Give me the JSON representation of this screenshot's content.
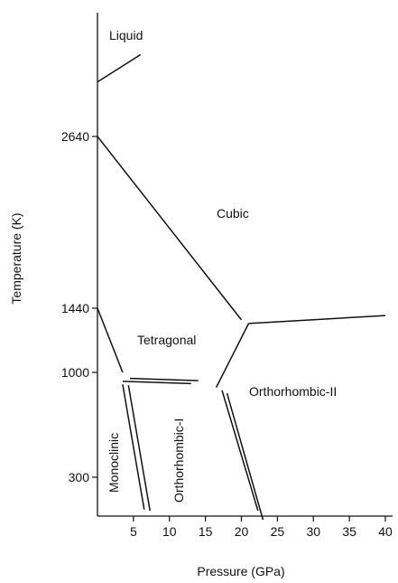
{
  "chart_data": {
    "type": "line",
    "title": "",
    "xlabel": "Pressure (GPa)",
    "ylabel": "Temperature (K)",
    "xlim": [
      0,
      40
    ],
    "x_ticks": [
      5,
      10,
      15,
      20,
      25,
      30,
      35,
      40
    ],
    "y_ticks": [
      300,
      1000,
      1440,
      2640
    ],
    "phase_labels": {
      "liquid": "Liquid",
      "cubic": "Cubic",
      "tetragonal": "Tetragonal",
      "orthorhombic_ii": "Orthorhombic-II",
      "monoclinic": "Monoclinic",
      "orthorhombic_i": "Orthorhombic-I"
    },
    "color": "#111111",
    "boundaries": [
      {
        "points": [
          [
            0,
            3000
          ],
          [
            6,
            3180
          ]
        ]
      },
      {
        "points": [
          [
            0,
            2640
          ],
          [
            20,
            1360
          ]
        ]
      },
      {
        "points": [
          [
            21,
            1335
          ],
          [
            40,
            1390
          ]
        ]
      },
      {
        "points": [
          [
            0,
            1440
          ],
          [
            3.5,
            1000
          ]
        ]
      },
      {
        "points": [
          [
            16.5,
            900
          ],
          [
            21,
            1335
          ]
        ]
      },
      {
        "points": [
          [
            4.5,
            960
          ],
          [
            14,
            945
          ]
        ]
      },
      {
        "points": [
          [
            3.5,
            940
          ],
          [
            13,
            925
          ]
        ]
      },
      {
        "points": [
          [
            3.5,
            920
          ],
          [
            6.5,
            10
          ]
        ]
      },
      {
        "points": [
          [
            4.3,
            915
          ],
          [
            7.3,
            0
          ]
        ]
      },
      {
        "points": [
          [
            17.3,
            880
          ],
          [
            22.3,
            0
          ]
        ]
      },
      {
        "points": [
          [
            18,
            860
          ],
          [
            23,
            -20
          ]
        ]
      }
    ]
  }
}
